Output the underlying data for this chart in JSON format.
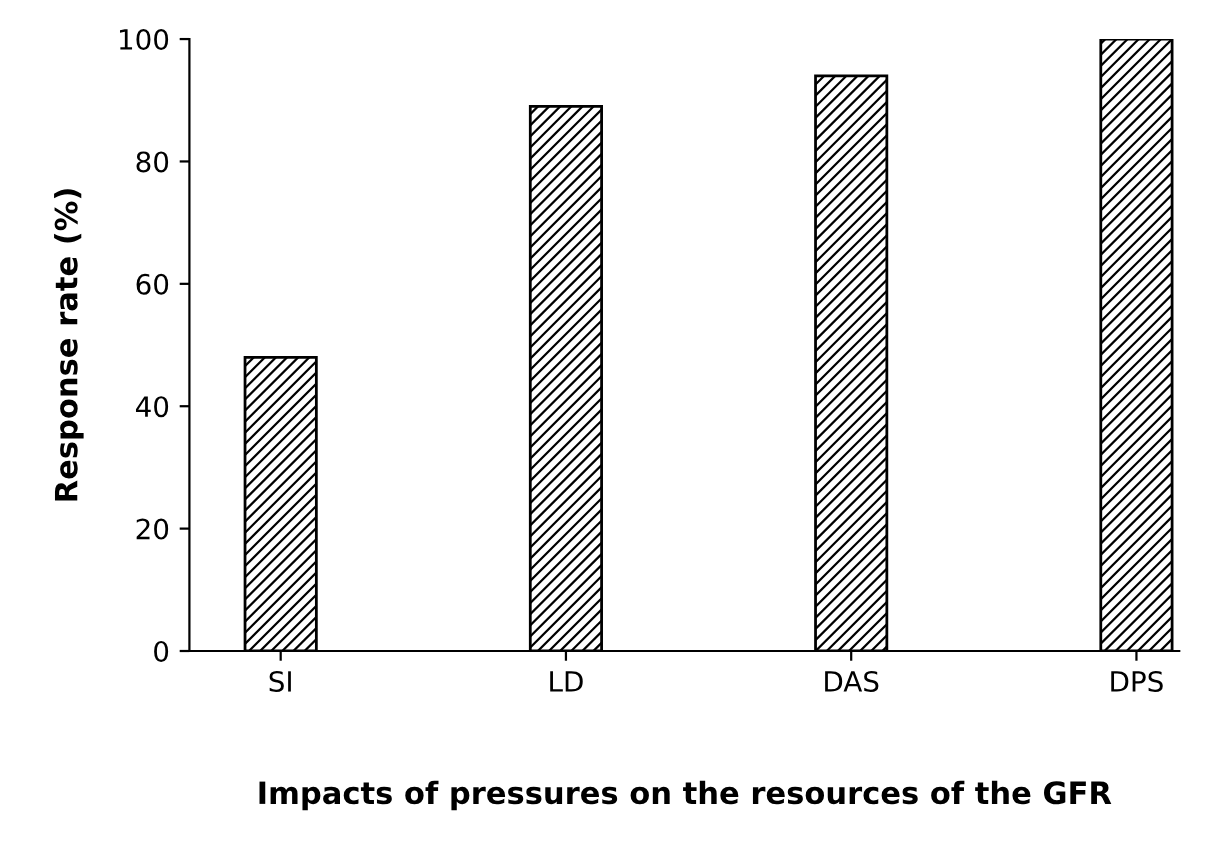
{
  "chart_data": {
    "type": "bar",
    "xlabel": "Impacts of pressures on the resources of the GFR",
    "ylabel": "Response rate (%)",
    "categories": [
      "SI",
      "LD",
      "DAS",
      "DPS"
    ],
    "values": [
      48,
      89,
      94,
      100
    ],
    "color": "#000000",
    "ylim": [
      0,
      100
    ],
    "yticks": [
      0,
      20,
      40,
      60,
      80,
      100
    ],
    "grid": false,
    "legend": false
  }
}
